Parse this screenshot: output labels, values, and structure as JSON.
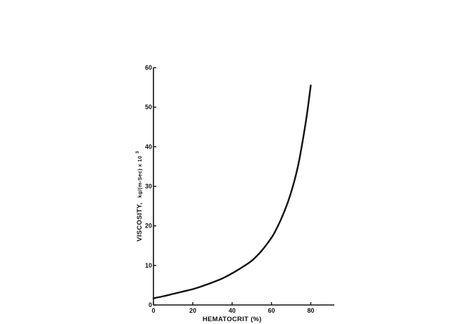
{
  "chart_data": {
    "type": "line",
    "xlabel": "HEMATOCRIT (%)",
    "ylabel_main": "VISCOSITY,",
    "ylabel_unit": "kg/(m-Sec) x 10",
    "ylabel_exp": "3",
    "xlim": [
      0,
      92
    ],
    "ylim": [
      0,
      60
    ],
    "x_ticks": [
      0,
      20,
      40,
      60,
      80
    ],
    "y_ticks": [
      0,
      10,
      20,
      30,
      40,
      50,
      60
    ],
    "grid": false,
    "series": [
      {
        "x": [
          0,
          5,
          10,
          15,
          20,
          25,
          30,
          35,
          40,
          45,
          50,
          55,
          60,
          62,
          65,
          68,
          70,
          72,
          74,
          76,
          78,
          80
        ],
        "values": [
          1.7,
          2.2,
          2.8,
          3.4,
          4.0,
          4.8,
          5.7,
          6.7,
          8.0,
          9.5,
          11.2,
          13.7,
          17.0,
          18.7,
          21.8,
          25.5,
          28.5,
          32.0,
          36.3,
          41.8,
          48.0,
          55.5
        ]
      }
    ]
  }
}
